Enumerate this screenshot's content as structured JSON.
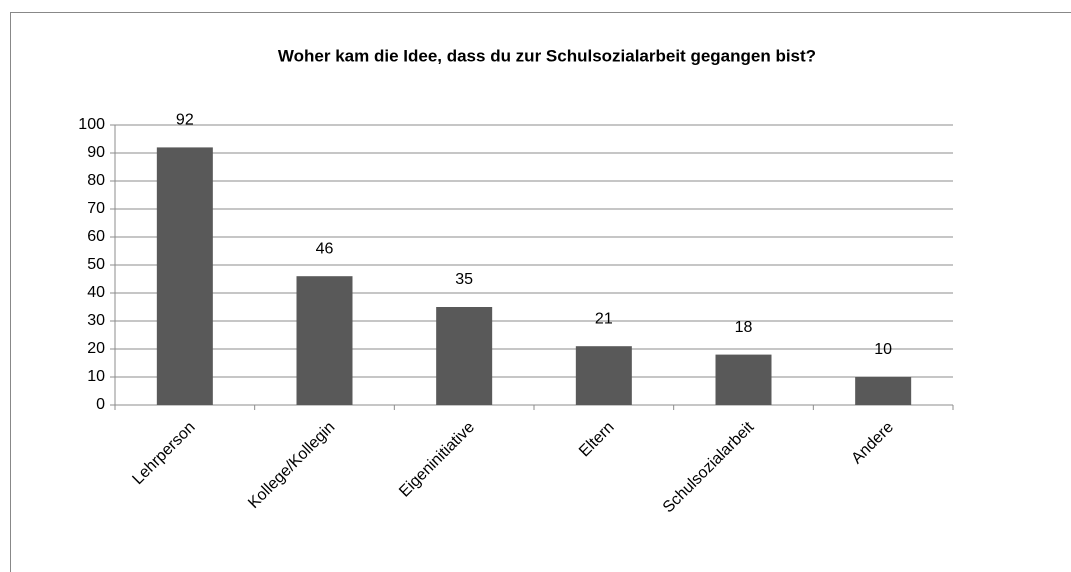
{
  "chart_data": {
    "type": "bar",
    "title": "Woher kam die Idee, dass du zur Schulsozialarbeit gegangen bist?",
    "categories": [
      "Lehrperson",
      "Kollege/Kollegin",
      "Eigeninitiative",
      "Eltern",
      "Schulsozialarbeit",
      "Andere"
    ],
    "values": [
      92,
      46,
      35,
      21,
      18,
      10
    ],
    "color": "#595959",
    "ylim": [
      0,
      100
    ],
    "yticks": [
      0,
      10,
      20,
      30,
      40,
      50,
      60,
      70,
      80,
      90,
      100
    ],
    "grid": true
  }
}
